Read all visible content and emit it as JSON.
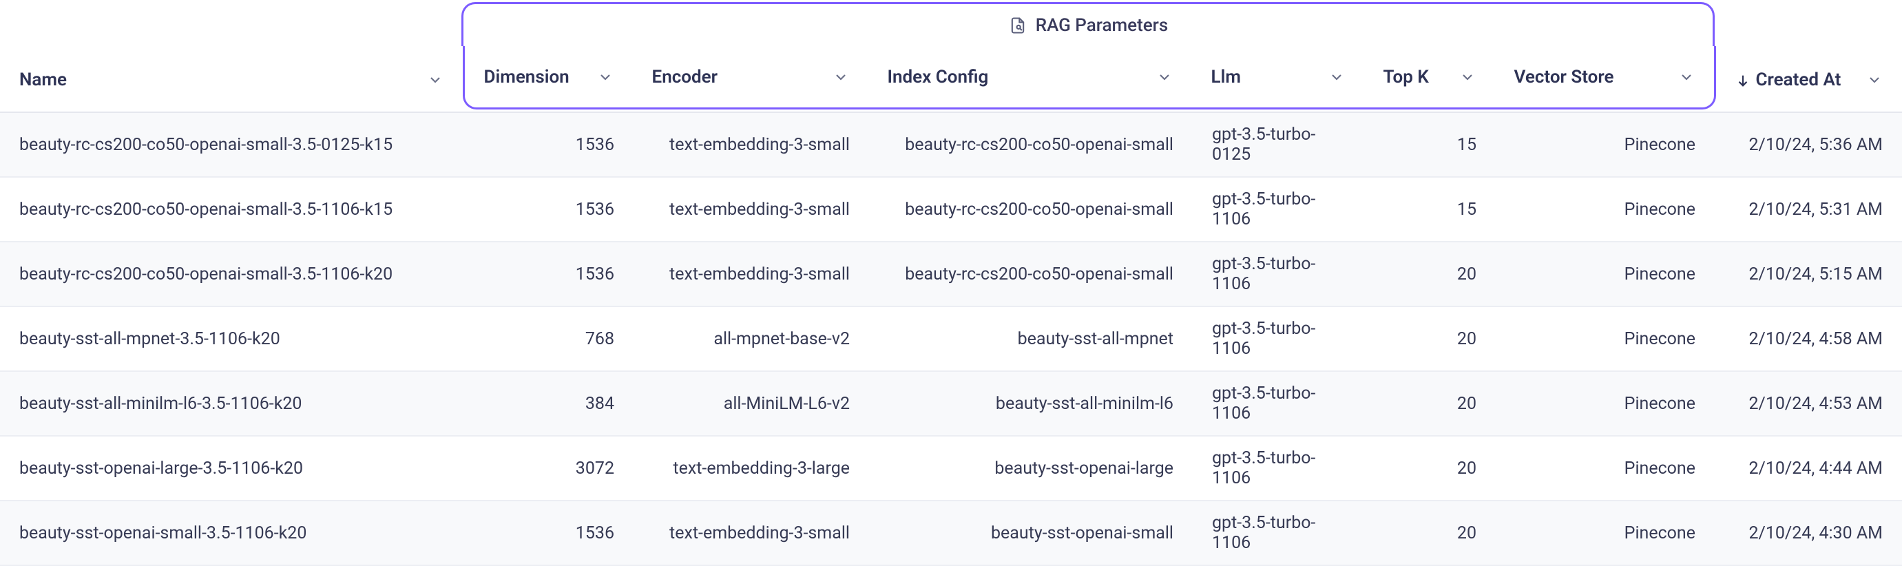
{
  "colors": {
    "group_border": "#7c5cff",
    "header_text": "#2e3355",
    "body_text": "#363a54",
    "row_border": "#eceef3",
    "alt_row_bg": "#f8f9fb",
    "chevron": "#6b7088"
  },
  "group": {
    "label": "RAG Parameters"
  },
  "columns": {
    "name": "Name",
    "dimension": "Dimension",
    "encoder": "Encoder",
    "index_config": "Index Config",
    "llm": "Llm",
    "top_k": "Top K",
    "vector_store": "Vector Store",
    "created_at": "Created At"
  },
  "rows": [
    {
      "name": "beauty-rc-cs200-co50-openai-small-3.5-0125-k15",
      "dimension": "1536",
      "encoder": "text-embedding-3-small",
      "index_config": "beauty-rc-cs200-co50-openai-small",
      "llm": "gpt-3.5-turbo-0125",
      "top_k": "15",
      "vector_store": "Pinecone",
      "created_at": "2/10/24, 5:36 AM"
    },
    {
      "name": "beauty-rc-cs200-co50-openai-small-3.5-1106-k15",
      "dimension": "1536",
      "encoder": "text-embedding-3-small",
      "index_config": "beauty-rc-cs200-co50-openai-small",
      "llm": "gpt-3.5-turbo-1106",
      "top_k": "15",
      "vector_store": "Pinecone",
      "created_at": "2/10/24, 5:31 AM"
    },
    {
      "name": "beauty-rc-cs200-co50-openai-small-3.5-1106-k20",
      "dimension": "1536",
      "encoder": "text-embedding-3-small",
      "index_config": "beauty-rc-cs200-co50-openai-small",
      "llm": "gpt-3.5-turbo-1106",
      "top_k": "20",
      "vector_store": "Pinecone",
      "created_at": "2/10/24, 5:15 AM"
    },
    {
      "name": "beauty-sst-all-mpnet-3.5-1106-k20",
      "dimension": "768",
      "encoder": "all-mpnet-base-v2",
      "index_config": "beauty-sst-all-mpnet",
      "llm": "gpt-3.5-turbo-1106",
      "top_k": "20",
      "vector_store": "Pinecone",
      "created_at": "2/10/24, 4:58 AM"
    },
    {
      "name": "beauty-sst-all-minilm-l6-3.5-1106-k20",
      "dimension": "384",
      "encoder": "all-MiniLM-L6-v2",
      "index_config": "beauty-sst-all-minilm-l6",
      "llm": "gpt-3.5-turbo-1106",
      "top_k": "20",
      "vector_store": "Pinecone",
      "created_at": "2/10/24, 4:53 AM"
    },
    {
      "name": "beauty-sst-openai-large-3.5-1106-k20",
      "dimension": "3072",
      "encoder": "text-embedding-3-large",
      "index_config": "beauty-sst-openai-large",
      "llm": "gpt-3.5-turbo-1106",
      "top_k": "20",
      "vector_store": "Pinecone",
      "created_at": "2/10/24, 4:44 AM"
    },
    {
      "name": "beauty-sst-openai-small-3.5-1106-k20",
      "dimension": "1536",
      "encoder": "text-embedding-3-small",
      "index_config": "beauty-sst-openai-small",
      "llm": "gpt-3.5-turbo-1106",
      "top_k": "20",
      "vector_store": "Pinecone",
      "created_at": "2/10/24, 4:30 AM"
    }
  ]
}
